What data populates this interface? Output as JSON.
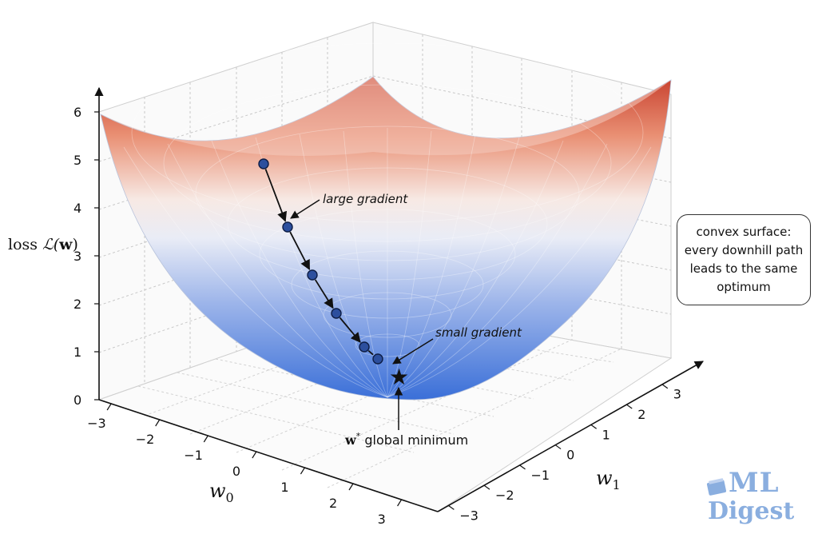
{
  "chart_data": {
    "type": "surface",
    "function": "loss = 0.7 * (w0^2 + w1^2) - style convex bowl (paraboloid)",
    "x_axis": {
      "label_var": "w",
      "label_sub": "0",
      "ticks": [
        "−3",
        "−2",
        "−1",
        "0",
        "1",
        "2",
        "3"
      ],
      "range": [
        -3,
        3
      ]
    },
    "y_axis": {
      "label_var": "w",
      "label_sub": "1",
      "ticks": [
        "−3",
        "−2",
        "−1",
        "0",
        "1",
        "2",
        "3"
      ],
      "range": [
        -3,
        3
      ]
    },
    "z_axis": {
      "label_prefix": "loss ",
      "label_script": "ℒ(",
      "label_bold": "w",
      "label_suffix": ")",
      "ticks": [
        "0",
        "1",
        "2",
        "3",
        "4",
        "5",
        "6"
      ],
      "range": [
        0,
        6
      ]
    },
    "colormap": [
      "#3a6fd8",
      "#f4f4f6",
      "#c8412f"
    ],
    "grid": true,
    "descent_path": [
      {
        "loss": 4.85
      },
      {
        "loss": 3.6
      },
      {
        "loss": 2.6
      },
      {
        "loss": 1.8
      },
      {
        "loss": 1.1
      },
      {
        "loss": 0.85
      }
    ],
    "minimum": {
      "loss": 0.5,
      "marker": "star"
    },
    "annotations": {
      "large_gradient": "large gradient",
      "small_gradient": "small gradient",
      "minimum_bold": "w",
      "minimum_sup": "*",
      "minimum_text": " global minimum"
    },
    "callout": [
      "convex surface:",
      "every downhill path",
      "leads to the same",
      "optimum"
    ],
    "colors": {
      "path_point": "#2c4f9e",
      "path_line": "#111111",
      "grid": "#c8c8c8"
    }
  },
  "watermark": {
    "line1": "ML",
    "line2": "Digest"
  }
}
